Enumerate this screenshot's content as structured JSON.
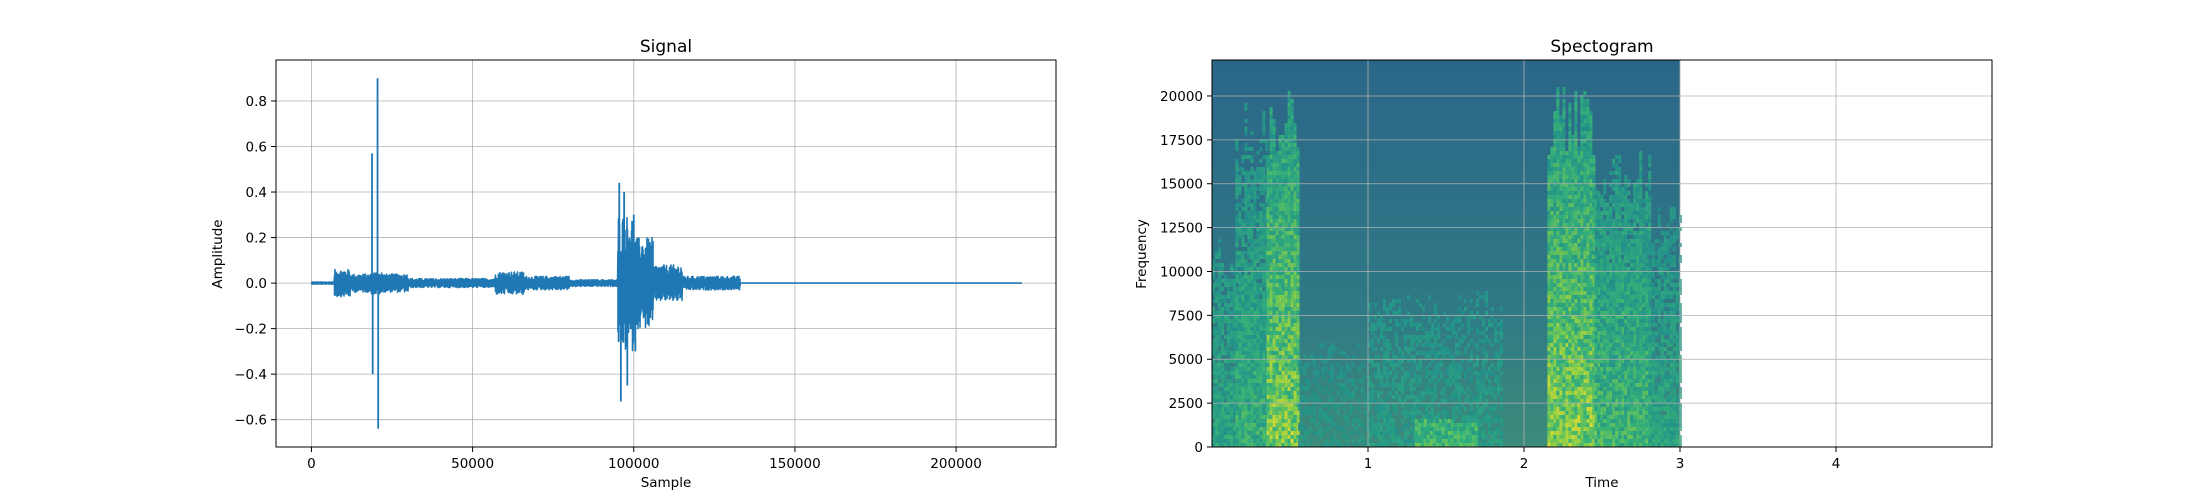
{
  "chart_data": [
    {
      "type": "line",
      "title": "Signal",
      "xlabel": "Sample",
      "ylabel": "Amplitude",
      "xlim": [
        -11000,
        231000
      ],
      "ylim": [
        -0.72,
        0.98
      ],
      "grid": true,
      "color": "#1f77b4",
      "x_ticks": [
        0,
        50000,
        100000,
        150000,
        200000
      ],
      "x_tick_labels": [
        "0",
        "50000",
        "100000",
        "150000",
        "200000"
      ],
      "y_ticks": [
        -0.6,
        -0.4,
        -0.2,
        0.0,
        0.2,
        0.4,
        0.6,
        0.8
      ],
      "y_tick_labels": [
        "−0.6",
        "−0.4",
        "−0.2",
        "0.0",
        "0.2",
        "0.4",
        "0.6",
        "0.8"
      ],
      "n_samples": 220500,
      "bursts": [
        {
          "start": 0,
          "end": 7000,
          "amp": 0.005
        },
        {
          "start": 7000,
          "end": 12000,
          "amp": 0.06
        },
        {
          "start": 12000,
          "end": 18500,
          "amp": 0.04
        },
        {
          "start": 18500,
          "end": 22000,
          "amp": 0.05
        },
        {
          "start": 22000,
          "end": 30000,
          "amp": 0.04
        },
        {
          "start": 30000,
          "end": 57000,
          "amp": 0.02
        },
        {
          "start": 57000,
          "end": 66000,
          "amp": 0.05
        },
        {
          "start": 66000,
          "end": 80000,
          "amp": 0.03
        },
        {
          "start": 80000,
          "end": 95000,
          "amp": 0.015
        },
        {
          "start": 95000,
          "end": 100000,
          "amp": 0.3
        },
        {
          "start": 100000,
          "end": 106000,
          "amp": 0.2
        },
        {
          "start": 106000,
          "end": 115000,
          "amp": 0.08
        },
        {
          "start": 115000,
          "end": 133000,
          "amp": 0.03
        },
        {
          "start": 133000,
          "end": 220500,
          "amp": 0.0
        }
      ],
      "spikes": [
        {
          "x": 18800,
          "y": 0.57
        },
        {
          "x": 19000,
          "y": -0.4
        },
        {
          "x": 20500,
          "y": 0.9
        },
        {
          "x": 20700,
          "y": -0.64
        },
        {
          "x": 95500,
          "y": 0.44
        },
        {
          "x": 96000,
          "y": -0.52
        },
        {
          "x": 97000,
          "y": 0.4
        },
        {
          "x": 98000,
          "y": -0.45
        },
        {
          "x": 100000,
          "y": 0.3
        },
        {
          "x": 100500,
          "y": -0.3
        }
      ]
    },
    {
      "type": "heatmap",
      "title": "Spectogram",
      "xlabel": "Time",
      "ylabel": "Frequency",
      "xlim": [
        0,
        5
      ],
      "ylim": [
        0,
        22050
      ],
      "grid": true,
      "colormap": "viridis",
      "data_time_extent": [
        0,
        3.0
      ],
      "x_ticks": [
        1,
        2,
        3,
        4
      ],
      "x_tick_labels": [
        "1",
        "2",
        "3",
        "4"
      ],
      "y_ticks": [
        0,
        2500,
        5000,
        7500,
        10000,
        12500,
        15000,
        17500,
        20000
      ],
      "y_tick_labels": [
        "0",
        "2500",
        "5000",
        "7500",
        "10000",
        "12500",
        "15000",
        "17500",
        "20000"
      ],
      "energy_regions": [
        {
          "t0": 0.0,
          "t1": 0.15,
          "f0": 0,
          "f1": 12000,
          "level": 0.45
        },
        {
          "t0": 0.15,
          "t1": 0.35,
          "f0": 0,
          "f1": 19500,
          "level": 0.55
        },
        {
          "t0": 0.35,
          "t1": 0.55,
          "f0": 0,
          "f1": 20500,
          "level": 0.85
        },
        {
          "t0": 0.55,
          "t1": 1.0,
          "f0": 0,
          "f1": 6000,
          "level": 0.3
        },
        {
          "t0": 1.0,
          "t1": 1.85,
          "f0": 0,
          "f1": 9000,
          "level": 0.35
        },
        {
          "t0": 1.3,
          "t1": 1.7,
          "f0": 0,
          "f1": 1500,
          "level": 0.6
        },
        {
          "t0": 2.15,
          "t1": 2.45,
          "f0": 0,
          "f1": 20500,
          "level": 0.85
        },
        {
          "t0": 2.45,
          "t1": 2.8,
          "f0": 0,
          "f1": 17000,
          "level": 0.6
        },
        {
          "t0": 2.8,
          "t1": 3.0,
          "f0": 0,
          "f1": 14000,
          "level": 0.45
        }
      ]
    }
  ]
}
